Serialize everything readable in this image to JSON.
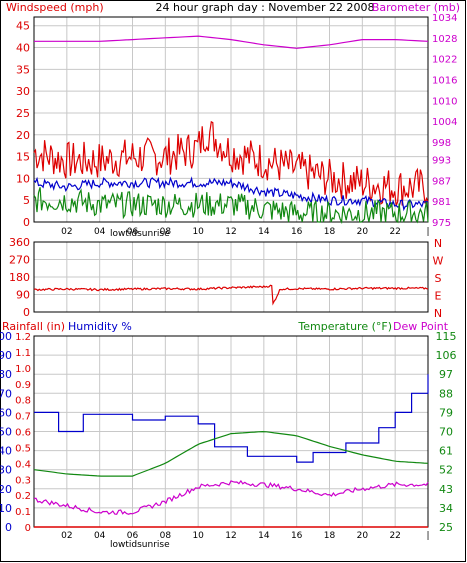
{
  "colors": {
    "red": "#dd0000",
    "blue": "#0000cc",
    "green": "#118811",
    "magenta": "#cc00cc",
    "grid": "#c8c8c8",
    "frame": "#000000"
  },
  "chart_data": [
    {
      "type": "line",
      "title": "24 hour graph day : November 22 2008",
      "left_label": "Windspeed (mph)",
      "right_label": "Barometer (mb)",
      "x_ticks": [
        "02",
        "04",
        "06",
        "08",
        "10",
        "12",
        "14",
        "16",
        "18",
        "20",
        "22",
        "|"
      ],
      "bottom_annotation": "lowtidsunrise",
      "y_left": {
        "ticks": [
          "0",
          "5",
          "10",
          "15",
          "20",
          "25",
          "30",
          "35",
          "40",
          "45"
        ],
        "range": [
          0,
          47
        ]
      },
      "y_right": {
        "ticks": [
          "975",
          "981",
          "987",
          "993",
          "998",
          "1004",
          "1010",
          "1016",
          "1022",
          "1028",
          "1034"
        ],
        "range": [
          975,
          1034
        ]
      },
      "series": [
        {
          "key": "gust",
          "color": "#dd0000",
          "axis": "left",
          "x": [
            0,
            2,
            4,
            6,
            8,
            10,
            10.5,
            12,
            14,
            16,
            18,
            20,
            22,
            24
          ],
          "y": [
            16,
            14,
            14,
            15,
            15,
            17,
            21,
            16,
            14,
            12,
            10,
            9,
            8,
            8
          ]
        },
        {
          "key": "avg_wind",
          "color": "#0000cc",
          "axis": "left",
          "x": [
            0,
            2,
            4,
            6,
            8,
            10,
            12,
            14,
            16,
            18,
            20,
            22,
            24
          ],
          "y": [
            9,
            8,
            9,
            9,
            9,
            9,
            9,
            7,
            6,
            5,
            5,
            4,
            4
          ]
        },
        {
          "key": "low_wind",
          "color": "#118811",
          "axis": "left",
          "x": [
            0,
            2,
            4,
            6,
            8,
            10,
            12,
            14,
            16,
            18,
            20,
            22,
            24
          ],
          "y": [
            5,
            5,
            4,
            4,
            4,
            4,
            4,
            3,
            2,
            2,
            2,
            2,
            2
          ]
        },
        {
          "key": "barometer",
          "color": "#cc00cc",
          "axis": "right",
          "x": [
            0,
            2,
            4,
            6,
            8,
            10,
            12,
            14,
            16,
            18,
            20,
            22,
            24
          ],
          "y": [
            1027,
            1027,
            1027,
            1027.5,
            1028,
            1028.5,
            1027.5,
            1026,
            1025,
            1026,
            1027.5,
            1027.5,
            1027
          ]
        }
      ]
    },
    {
      "type": "line",
      "left_ticks": [
        "360",
        "270",
        "180",
        "90",
        "0"
      ],
      "right_ticks": [
        "N",
        "W",
        "S",
        "E",
        "N"
      ],
      "y_range": [
        0,
        360
      ],
      "series": [
        {
          "key": "wind_direction",
          "color": "#dd0000",
          "x": [
            0,
            2,
            4,
            6,
            8,
            10,
            12,
            14,
            14.5,
            14.55,
            15,
            16,
            18,
            20,
            22,
            24
          ],
          "y": [
            115,
            118,
            115,
            118,
            120,
            118,
            125,
            130,
            135,
            40,
            118,
            120,
            118,
            122,
            122,
            122
          ]
        }
      ]
    },
    {
      "type": "line",
      "left_label_rain": "Rainfall (in)",
      "left_label_hum": "Humidity %",
      "right_label_temp": "Temperature (°F)",
      "right_label_dew": "Dew Point",
      "x_ticks": [
        "02",
        "04",
        "06",
        "08",
        "10",
        "12",
        "14",
        "16",
        "18",
        "20",
        "22",
        "|"
      ],
      "bottom_annotation": "lowtidsunrise",
      "y_hum_ticks": [
        "0",
        "10",
        "20",
        "30",
        "40",
        "50",
        "60",
        "70",
        "80",
        "90",
        "100"
      ],
      "y_rain_ticks": [
        "0",
        "0.1",
        "0.2",
        "0.3",
        "0.4",
        "0.5",
        "0.6",
        "0.7",
        "0.8",
        "0.9",
        "1.0",
        "1.1",
        "1.2"
      ],
      "y_temp_ticks": [
        "25",
        "34",
        "43",
        "52",
        "61",
        "70",
        "79",
        "88",
        "97",
        "106",
        "115"
      ],
      "temp_range": [
        25,
        115
      ],
      "series": [
        {
          "key": "humidity",
          "color": "#0000cc",
          "axis": "humidity",
          "step": true,
          "x": [
            0,
            1.5,
            3,
            6,
            8,
            10,
            11,
            13,
            16,
            17,
            19,
            21,
            22,
            23,
            24
          ],
          "y": [
            60,
            50,
            59,
            56,
            58,
            54,
            42,
            37,
            34,
            39,
            44,
            52,
            60,
            70,
            80
          ]
        },
        {
          "key": "temperature",
          "color": "#118811",
          "axis": "temp",
          "x": [
            0,
            2,
            4,
            6,
            8,
            10,
            12,
            14,
            16,
            18,
            20,
            22,
            24
          ],
          "y": [
            52,
            50,
            49,
            49,
            55,
            64,
            69,
            70,
            68,
            63,
            59,
            56,
            55
          ]
        },
        {
          "key": "dew_point",
          "color": "#cc00cc",
          "axis": "temp",
          "x": [
            0,
            2,
            4,
            6,
            8,
            10,
            12,
            14,
            16,
            18,
            20,
            22,
            24
          ],
          "y": [
            38,
            35,
            32,
            32,
            37,
            44,
            46,
            45,
            43,
            40,
            43,
            45,
            45
          ]
        },
        {
          "key": "rainfall",
          "color": "#dd0000",
          "axis": "rain",
          "x": [
            0,
            24
          ],
          "y": [
            0,
            0
          ]
        }
      ]
    }
  ]
}
